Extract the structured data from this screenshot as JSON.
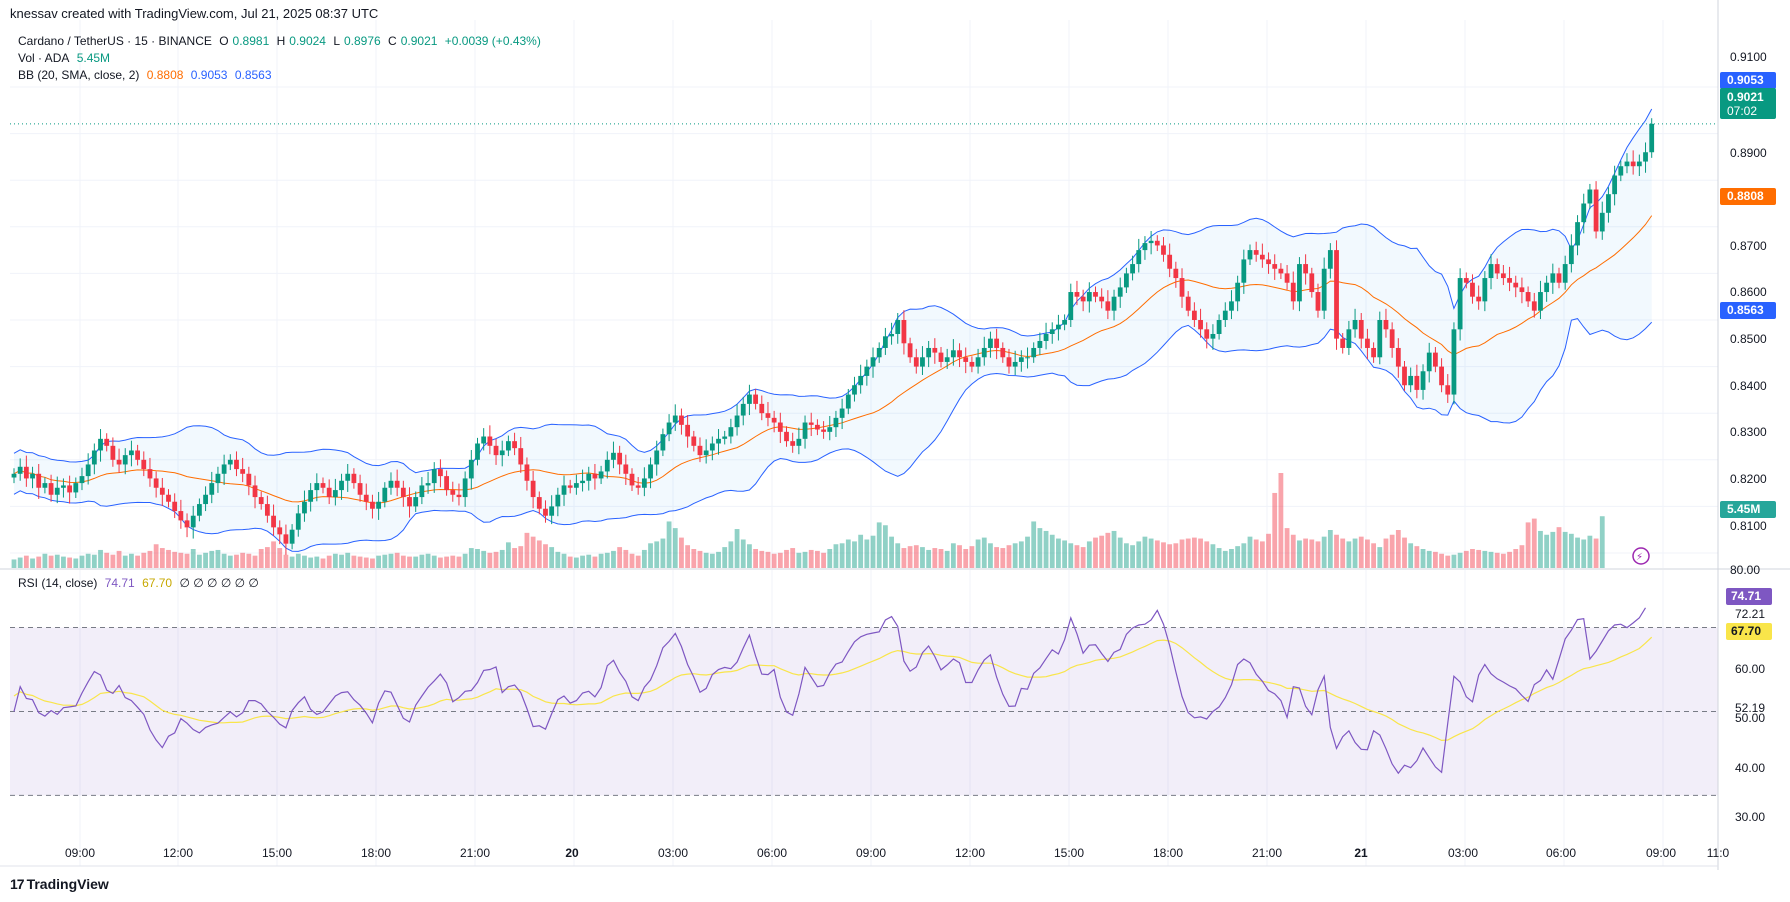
{
  "header": {
    "caption": "knessav created with TradingView.com, Jul 21, 2025 08:37 UTC"
  },
  "legend": {
    "symbol": "Cardano / TetherUS · 15 · BINANCE",
    "o_lbl": "O",
    "o": "0.8981",
    "h_lbl": "H",
    "h": "0.9024",
    "l_lbl": "L",
    "l": "0.8976",
    "c_lbl": "C",
    "c": "0.9021",
    "chg": "+0.0039 (+0.43%)",
    "vol_lbl": "Vol · ADA",
    "vol": "5.45M",
    "bb_lbl": "BB (20, SMA, close, 2)",
    "bb_mid": "0.8808",
    "bb_up": "0.9053",
    "bb_lo": "0.8563",
    "rsi_lbl": "RSI (14, close)",
    "rsi": "74.71",
    "rsi_ma": "67.70",
    "rsi_extra": "∅ ∅ ∅ ∅ ∅ ∅"
  },
  "footer": {
    "brand": "TradingView",
    "logo": "17"
  },
  "colors": {
    "up": "#089981",
    "down": "#f23645",
    "bb_mid": "#ff6d00",
    "bb_band": "#2962ff",
    "rsi": "#7e57c2",
    "rsi_ma": "#f9e54a"
  },
  "chart_data": [
    {
      "type": "candlestick",
      "title": "",
      "y_ticks": [
        "0.9100",
        "0.8900",
        "0.8800",
        "0.8700",
        "0.8600",
        "0.8500",
        "0.8400",
        "0.8300",
        "0.8200",
        "0.8100",
        "80.00"
      ],
      "ylim": [
        0.806,
        0.9117
      ],
      "x_ticks": [
        "09:00",
        "12:00",
        "15:00",
        "18:00",
        "21:00",
        "20",
        "03:00",
        "06:00",
        "09:00",
        "12:00",
        "15:00",
        "18:00",
        "21:00",
        "21",
        "03:00",
        "06:00",
        "09:00",
        "11:0"
      ],
      "badges": {
        "bb_upper": "0.9053",
        "last_price": "0.9021",
        "countdown": "07:02",
        "bb_middle": "0.8808",
        "bb_lower": "0.8563",
        "volume": "5.45M"
      },
      "close": [
        0.827,
        0.8285,
        0.826,
        0.827,
        0.824,
        0.825,
        0.8225,
        0.824,
        0.8245,
        0.823,
        0.825,
        0.8265,
        0.829,
        0.832,
        0.8345,
        0.833,
        0.83,
        0.829,
        0.831,
        0.832,
        0.83,
        0.828,
        0.826,
        0.824,
        0.8225,
        0.821,
        0.819,
        0.817,
        0.8155,
        0.818,
        0.8205,
        0.8225,
        0.825,
        0.827,
        0.829,
        0.83,
        0.828,
        0.827,
        0.8245,
        0.822,
        0.8205,
        0.818,
        0.8155,
        0.814,
        0.812,
        0.815,
        0.8185,
        0.821,
        0.8235,
        0.825,
        0.824,
        0.822,
        0.8235,
        0.8255,
        0.827,
        0.825,
        0.8225,
        0.821,
        0.8195,
        0.821,
        0.824,
        0.8255,
        0.824,
        0.822,
        0.82,
        0.822,
        0.8245,
        0.825,
        0.828,
        0.8265,
        0.8235,
        0.8225,
        0.822,
        0.826,
        0.83,
        0.8335,
        0.835,
        0.833,
        0.831,
        0.832,
        0.834,
        0.8325,
        0.829,
        0.8255,
        0.822,
        0.8195,
        0.818,
        0.82,
        0.8225,
        0.8245,
        0.824,
        0.825,
        0.8255,
        0.827,
        0.826,
        0.8275,
        0.83,
        0.8315,
        0.829,
        0.827,
        0.8245,
        0.824,
        0.826,
        0.829,
        0.832,
        0.8355,
        0.838,
        0.8395,
        0.8375,
        0.835,
        0.833,
        0.831,
        0.832,
        0.8335,
        0.8345,
        0.835,
        0.837,
        0.8395,
        0.842,
        0.844,
        0.842,
        0.84,
        0.839,
        0.838,
        0.836,
        0.834,
        0.833,
        0.8345,
        0.838,
        0.8375,
        0.8365,
        0.836,
        0.837,
        0.839,
        0.841,
        0.844,
        0.846,
        0.848,
        0.85,
        0.852,
        0.854,
        0.8565,
        0.857,
        0.86,
        0.855,
        0.852,
        0.85,
        0.852,
        0.854,
        0.853,
        0.851,
        0.852,
        0.8535,
        0.852,
        0.851,
        0.85,
        0.852,
        0.854,
        0.856,
        0.854,
        0.852,
        0.85,
        0.851,
        0.852,
        0.852,
        0.854,
        0.8555,
        0.857,
        0.858,
        0.859,
        0.86,
        0.866,
        0.865,
        0.864,
        0.866,
        0.865,
        0.864,
        0.862,
        0.865,
        0.867,
        0.87,
        0.872,
        0.875,
        0.8765,
        0.877,
        0.876,
        0.874,
        0.871,
        0.869,
        0.865,
        0.862,
        0.86,
        0.858,
        0.856,
        0.857,
        0.86,
        0.862,
        0.864,
        0.868,
        0.873,
        0.875,
        0.874,
        0.873,
        0.872,
        0.871,
        0.87,
        0.868,
        0.864,
        0.872,
        0.87,
        0.866,
        0.862,
        0.871,
        0.875,
        0.856,
        0.854,
        0.858,
        0.86,
        0.856,
        0.854,
        0.852,
        0.86,
        0.858,
        0.854,
        0.85,
        0.846,
        0.848,
        0.845,
        0.849,
        0.853,
        0.85,
        0.846,
        0.844,
        0.858,
        0.869,
        0.868,
        0.865,
        0.864,
        0.869,
        0.872,
        0.87,
        0.869,
        0.868,
        0.867,
        0.866,
        0.864,
        0.862,
        0.866,
        0.868,
        0.87,
        0.868,
        0.872,
        0.876,
        0.881,
        0.885,
        0.888,
        0.879,
        0.883,
        0.887,
        0.891,
        0.893,
        0.894,
        0.893,
        0.894,
        0.896,
        0.9021
      ]
    },
    {
      "type": "bar",
      "title": "Vol · ADA",
      "ylim": [
        0,
        10.0
      ],
      "values": [
        0.9,
        1.1,
        1.3,
        1.0,
        1.2,
        1.5,
        1.3,
        1.4,
        1.2,
        1.1,
        1.0,
        1.3,
        1.5,
        1.4,
        1.9,
        1.6,
        1.4,
        1.8,
        1.3,
        1.5,
        1.3,
        1.6,
        1.8,
        2.5,
        2.1,
        1.9,
        1.7,
        1.6,
        1.5,
        2.0,
        1.4,
        1.6,
        1.8,
        1.9,
        1.5,
        1.3,
        1.4,
        1.6,
        1.5,
        1.3,
        2.0,
        2.2,
        2.8,
        2.1,
        1.4,
        1.2,
        1.5,
        1.3,
        1.1,
        1.2,
        1.0,
        1.3,
        1.5,
        1.4,
        1.6,
        1.3,
        1.2,
        1.1,
        1.0,
        1.3,
        1.4,
        1.5,
        1.6,
        1.3,
        1.2,
        1.2,
        1.4,
        1.5,
        1.3,
        1.1,
        1.2,
        1.3,
        1.2,
        1.5,
        2.1,
        2.0,
        1.8,
        1.6,
        1.7,
        1.9,
        2.7,
        2.1,
        2.3,
        3.7,
        3.3,
        2.9,
        2.5,
        2.2,
        1.7,
        1.5,
        1.2,
        1.1,
        1.3,
        1.4,
        1.2,
        1.5,
        1.6,
        1.8,
        2.2,
        1.9,
        1.5,
        1.3,
        1.9,
        2.6,
        2.8,
        3.1,
        4.9,
        4.2,
        3.2,
        2.4,
        2.0,
        1.8,
        1.6,
        1.5,
        1.7,
        2.2,
        2.8,
        4.1,
        3.0,
        2.5,
        2.0,
        1.8,
        1.7,
        1.5,
        1.6,
        1.9,
        2.1,
        1.6,
        1.7,
        1.9,
        1.8,
        1.6,
        2.0,
        2.5,
        2.6,
        3.0,
        2.8,
        3.5,
        3.0,
        3.4,
        4.8,
        4.5,
        3.3,
        2.6,
        2.1,
        2.3,
        2.4,
        2.2,
        1.9,
        2.1,
        2.0,
        1.8,
        2.6,
        2.4,
        2.0,
        2.3,
        3.0,
        3.2,
        2.6,
        2.2,
        2.1,
        2.4,
        2.6,
        2.8,
        3.3,
        4.9,
        4.2,
        3.9,
        3.5,
        3.1,
        2.9,
        2.6,
        2.4,
        2.2,
        2.8,
        3.2,
        3.4,
        3.7,
        3.9,
        3.2,
        2.6,
        2.4,
        2.8,
        3.3,
        3.1,
        2.9,
        2.7,
        2.5,
        2.6,
        3.0,
        3.1,
        3.2,
        3.1,
        2.8,
        2.5,
        2.1,
        1.8,
        2.0,
        2.3,
        2.6,
        3.3,
        3.0,
        2.8,
        3.6,
        7.9,
        10.0,
        4.2,
        3.5,
        2.9,
        3.1,
        3.0,
        2.8,
        3.3,
        4.0,
        3.5,
        3.1,
        2.8,
        3.1,
        3.3,
        3.0,
        2.6,
        2.2,
        3.1,
        3.5,
        4.0,
        3.2,
        2.6,
        2.3,
        2.0,
        1.8,
        1.7,
        1.5,
        1.3,
        1.4,
        1.6,
        1.8,
        2.0,
        1.9,
        1.8,
        1.7,
        1.6,
        1.5,
        1.7,
        2.0,
        2.4,
        4.8,
        5.2,
        3.9,
        3.5,
        3.8,
        4.3,
        3.8,
        3.6,
        3.2,
        3.0,
        3.4,
        3.1,
        5.45
      ]
    },
    {
      "type": "line",
      "title": "RSI (14, close)",
      "ylim": [
        24.14,
        81.81
      ],
      "y_ticks": [
        "72.21",
        "60.00",
        "50.00",
        "40.00",
        "30.00"
      ],
      "badges": {
        "rsi_level": "52.19",
        "rsi": "74.71",
        "rsi_ma": "67.70"
      },
      "series": [
        {
          "name": "",
          "values": [
            50.0,
            55.9,
            53.1,
            52.8,
            49.7,
            48.9,
            50.2,
            49.3,
            50.9,
            51.1,
            51.3,
            54.4,
            57.1,
            59.5,
            58.7,
            55.1,
            54.3,
            56.2,
            53.3,
            52.6,
            51.0,
            49.3,
            45.6,
            43.2,
            41.4,
            44.1,
            44.9,
            48.3,
            47.2,
            45.7,
            44.9,
            46.2,
            46.8,
            47.2,
            48.6,
            49.9,
            48.7,
            49.7,
            52.6,
            52.6,
            51.8,
            50.0,
            48.6,
            47.0,
            46.1,
            50.2,
            52.1,
            53.5,
            50.5,
            49.3,
            49.9,
            51.8,
            53.7,
            54.5,
            54.7,
            52.8,
            51.5,
            49.6,
            47.3,
            52.0,
            54.9,
            54.6,
            51.5,
            48.4,
            47.5,
            51.5,
            53.7,
            55.8,
            57.3,
            58.9,
            56.8,
            52.3,
            53.3,
            54.8,
            55.0,
            56.9,
            59.8,
            60.0,
            60.6,
            54.5,
            55.9,
            56.3,
            54.5,
            50.7,
            46.4,
            46.6,
            45.8,
            49.5,
            52.8,
            53.7,
            52.0,
            52.6,
            54.4,
            54.8,
            53.5,
            55.7,
            60.9,
            62.2,
            59.3,
            57.2,
            53.5,
            52.6,
            55.8,
            57.5,
            60.9,
            65.2,
            66.7,
            68.6,
            65.5,
            61.2,
            58.2,
            54.6,
            55.5,
            58.8,
            60.0,
            60.5,
            60.2,
            61.8,
            65.1,
            68.2,
            63.2,
            58.9,
            58.8,
            60.0,
            53.4,
            49.9,
            49.1,
            54.2,
            60.5,
            58.2,
            55.9,
            56.2,
            59.2,
            61.3,
            61.8,
            64.3,
            66.6,
            67.8,
            68.4,
            68.7,
            69.0,
            71.8,
            72.6,
            70.3,
            62.0,
            59.6,
            60.6,
            64.0,
            65.6,
            63.1,
            59.9,
            61.1,
            62.5,
            61.6,
            56.9,
            56.9,
            59.9,
            62.3,
            63.5,
            58.2,
            54.1,
            51.2,
            51.3,
            55.5,
            55.3,
            59.1,
            60.4,
            62.6,
            64.7,
            63.7,
            67.1,
            72.3,
            68.5,
            63.9,
            65.8,
            65.9,
            63.8,
            61.9,
            64.1,
            64.8,
            68.4,
            69.9,
            70.6,
            70.8,
            71.8,
            74.1,
            70.8,
            65.7,
            59.5,
            53.6,
            49.7,
            48.5,
            48.7,
            48.2,
            50.0,
            51.1,
            53.3,
            56.4,
            61.2,
            62.5,
            61.6,
            58.9,
            57.2,
            55.0,
            54.2,
            52.6,
            48.6,
            55.9,
            55.6,
            51.2,
            49.2,
            55.2,
            58.4,
            46.2,
            41.2,
            44.0,
            45.4,
            42.6,
            41.0,
            40.9,
            45.4,
            44.4,
            41.1,
            37.5,
            35.3,
            37.2,
            36.6,
            38.3,
            41.3,
            39.0,
            36.8,
            35.5,
            47.3,
            58.4,
            57.0,
            53.5,
            52.3,
            58.7,
            61.2,
            59.0,
            57.8,
            57.0,
            56.1,
            55.4,
            53.8,
            52.4,
            56.4,
            57.4,
            59.9,
            57.7,
            62.4,
            67.3,
            69.4,
            71.9,
            72.1,
            62.5,
            64.4,
            66.8,
            69.2,
            70.6,
            70.8,
            70.0,
            71.1,
            72.3,
            74.71
          ]
        },
        {
          "name": "",
          "values": [
            53.7,
            54.7,
            54.1,
            53.8,
            53.1,
            52.5,
            52.2,
            51.8,
            51.5,
            51.5,
            51.4,
            51.7,
            52.4,
            53.3,
            54.3,
            54.5,
            54.6,
            54.8,
            54.5,
            54.3,
            53.9,
            53.5,
            52.5,
            51.4,
            50.3,
            49.7,
            49.3,
            49.1,
            48.7,
            48.3,
            47.9,
            47.7,
            47.5,
            47.3,
            47.3,
            47.4,
            47.4,
            47.5,
            48.0,
            48.5,
            48.8,
            48.9,
            48.8,
            48.6,
            48.3,
            48.4,
            48.6,
            48.8,
            48.6,
            48.5,
            48.6,
            49.0,
            49.5,
            49.9,
            50.3,
            50.6,
            50.7,
            50.6,
            50.3,
            50.5,
            50.9,
            51.3,
            51.3,
            50.9,
            50.6,
            50.7,
            51.0,
            51.3,
            51.8,
            52.5,
            52.9,
            52.7,
            52.7,
            52.9,
            53.0,
            53.4,
            54.1,
            54.7,
            55.4,
            55.2,
            55.3,
            55.3,
            55.2,
            54.6,
            53.6,
            53.0,
            52.3,
            52.0,
            51.9,
            51.9,
            51.7,
            51.6,
            51.7,
            51.8,
            51.8,
            52.1,
            52.9,
            53.7,
            54.1,
            54.4,
            54.3,
            54.3,
            54.5,
            54.8,
            55.4,
            56.3,
            57.2,
            58.1,
            58.7,
            58.9,
            59.0,
            58.8,
            58.7,
            58.9,
            59.2,
            59.4,
            59.5,
            59.8,
            60.4,
            61.0,
            61.1,
            61.0,
            60.9,
            60.9,
            60.2,
            59.6,
            59.0,
            58.7,
            59.0,
            59.0,
            58.8,
            58.7,
            58.7,
            58.9,
            59.2,
            59.6,
            60.2,
            60.8,
            61.4,
            62.0,
            62.6,
            63.4,
            64.1,
            64.5,
            64.3,
            63.9,
            63.7,
            63.7,
            63.8,
            63.7,
            63.4,
            63.2,
            63.1,
            62.9,
            62.3,
            61.7,
            61.5,
            61.5,
            61.5,
            61.1,
            60.4,
            59.6,
            59.0,
            58.6,
            58.2,
            58.2,
            58.2,
            58.3,
            58.7,
            59.0,
            59.5,
            60.4,
            61.0,
            61.3,
            61.7,
            62.2,
            62.4,
            62.5,
            62.7,
            63.0,
            63.6,
            64.2,
            64.9,
            65.5,
            66.2,
            66.9,
            67.0,
            66.8,
            66.2,
            65.2,
            64.0,
            62.8,
            61.7,
            60.5,
            59.5,
            58.6,
            57.9,
            57.5,
            57.5,
            57.6,
            57.6,
            57.5,
            57.2,
            56.9,
            56.6,
            56.2,
            55.5,
            55.5,
            55.4,
            55.1,
            54.8,
            54.9,
            55.0,
            54.3,
            53.6,
            53.0,
            52.5,
            51.9,
            51.2,
            50.5,
            50.0,
            49.5,
            48.9,
            48.1,
            47.1,
            46.4,
            45.7,
            45.2,
            44.9,
            44.4,
            43.8,
            43.1,
            43.2,
            44.0,
            44.7,
            45.3,
            45.9,
            46.9,
            48.1,
            49.0,
            49.9,
            50.6,
            51.3,
            52.1,
            52.8,
            53.4,
            54.3,
            55.0,
            55.7,
            56.2,
            56.9,
            57.8,
            58.6,
            59.5,
            60.2,
            60.5,
            60.9,
            61.3,
            61.7,
            62.3,
            63.0,
            63.6,
            64.3,
            65.0,
            66.3,
            67.7
          ]
        }
      ],
      "levels": [
        70,
        50,
        30
      ]
    }
  ]
}
